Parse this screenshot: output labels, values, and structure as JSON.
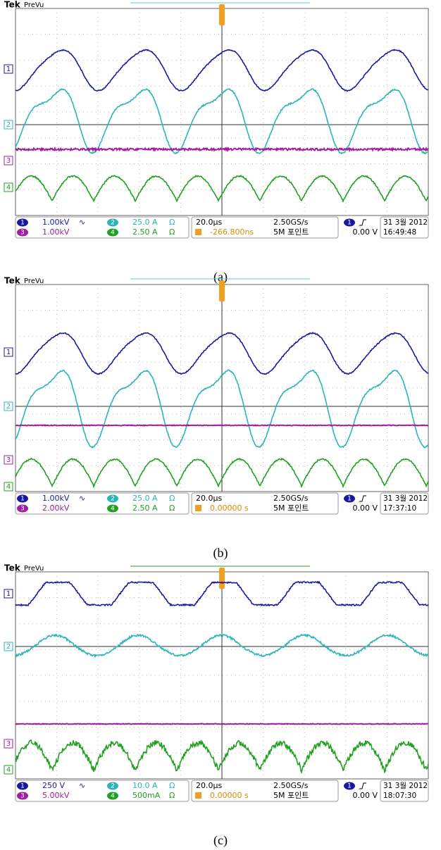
{
  "panels": [
    {
      "caption": "(a)",
      "brand": "Tek",
      "mode": "PreVu",
      "markers": [
        "1",
        "2",
        "3",
        "4"
      ],
      "channels": [
        {
          "num": "1",
          "scale": "1.00kV",
          "suffix": "∿"
        },
        {
          "num": "2",
          "scale": "25.0 A",
          "suffix": "Ω"
        },
        {
          "num": "3",
          "scale": "1.00kV",
          "suffix": ""
        },
        {
          "num": "4",
          "scale": "2.50 A",
          "suffix": "Ω"
        }
      ],
      "timebase": "20.0µs",
      "sample_rate": "2.50GS/s",
      "trigger_position": "-266.800ns",
      "record": "5M 포인트",
      "trigger_channel": "1",
      "trigger_level": "0.00 V",
      "date": "31 3월 2012",
      "time": "16:49:48"
    },
    {
      "caption": "(b)",
      "brand": "Tek",
      "mode": "PreVu",
      "markers": [
        "1",
        "2",
        "3",
        "4"
      ],
      "channels": [
        {
          "num": "1",
          "scale": "1.00kV",
          "suffix": "∿"
        },
        {
          "num": "2",
          "scale": "25.0 A",
          "suffix": "Ω"
        },
        {
          "num": "3",
          "scale": "2.00kV",
          "suffix": ""
        },
        {
          "num": "4",
          "scale": "2.50 A",
          "suffix": "Ω"
        }
      ],
      "timebase": "20.0µs",
      "sample_rate": "2.50GS/s",
      "trigger_position": "0.00000 s",
      "record": "5M 포인트",
      "trigger_channel": "1",
      "trigger_level": "0.00 V",
      "date": "31 3월 2012",
      "time": "17:37:10"
    },
    {
      "caption": "(c)",
      "brand": "Tek",
      "mode": "PreVu",
      "markers": [
        "1",
        "2",
        "3",
        "4"
      ],
      "channels": [
        {
          "num": "1",
          "scale": "250 V",
          "suffix": "∿"
        },
        {
          "num": "2",
          "scale": "10.0 A",
          "suffix": "Ω"
        },
        {
          "num": "3",
          "scale": "5.00kV",
          "suffix": ""
        },
        {
          "num": "4",
          "scale": "500mA",
          "suffix": "Ω"
        }
      ],
      "timebase": "20.0µs",
      "sample_rate": "2.50GS/s",
      "trigger_position": "0.00000 s",
      "record": "5M 포인트",
      "trigger_channel": "1",
      "trigger_level": "0.00 V",
      "date": "31 3월 2012",
      "time": "18:07:30"
    }
  ]
}
